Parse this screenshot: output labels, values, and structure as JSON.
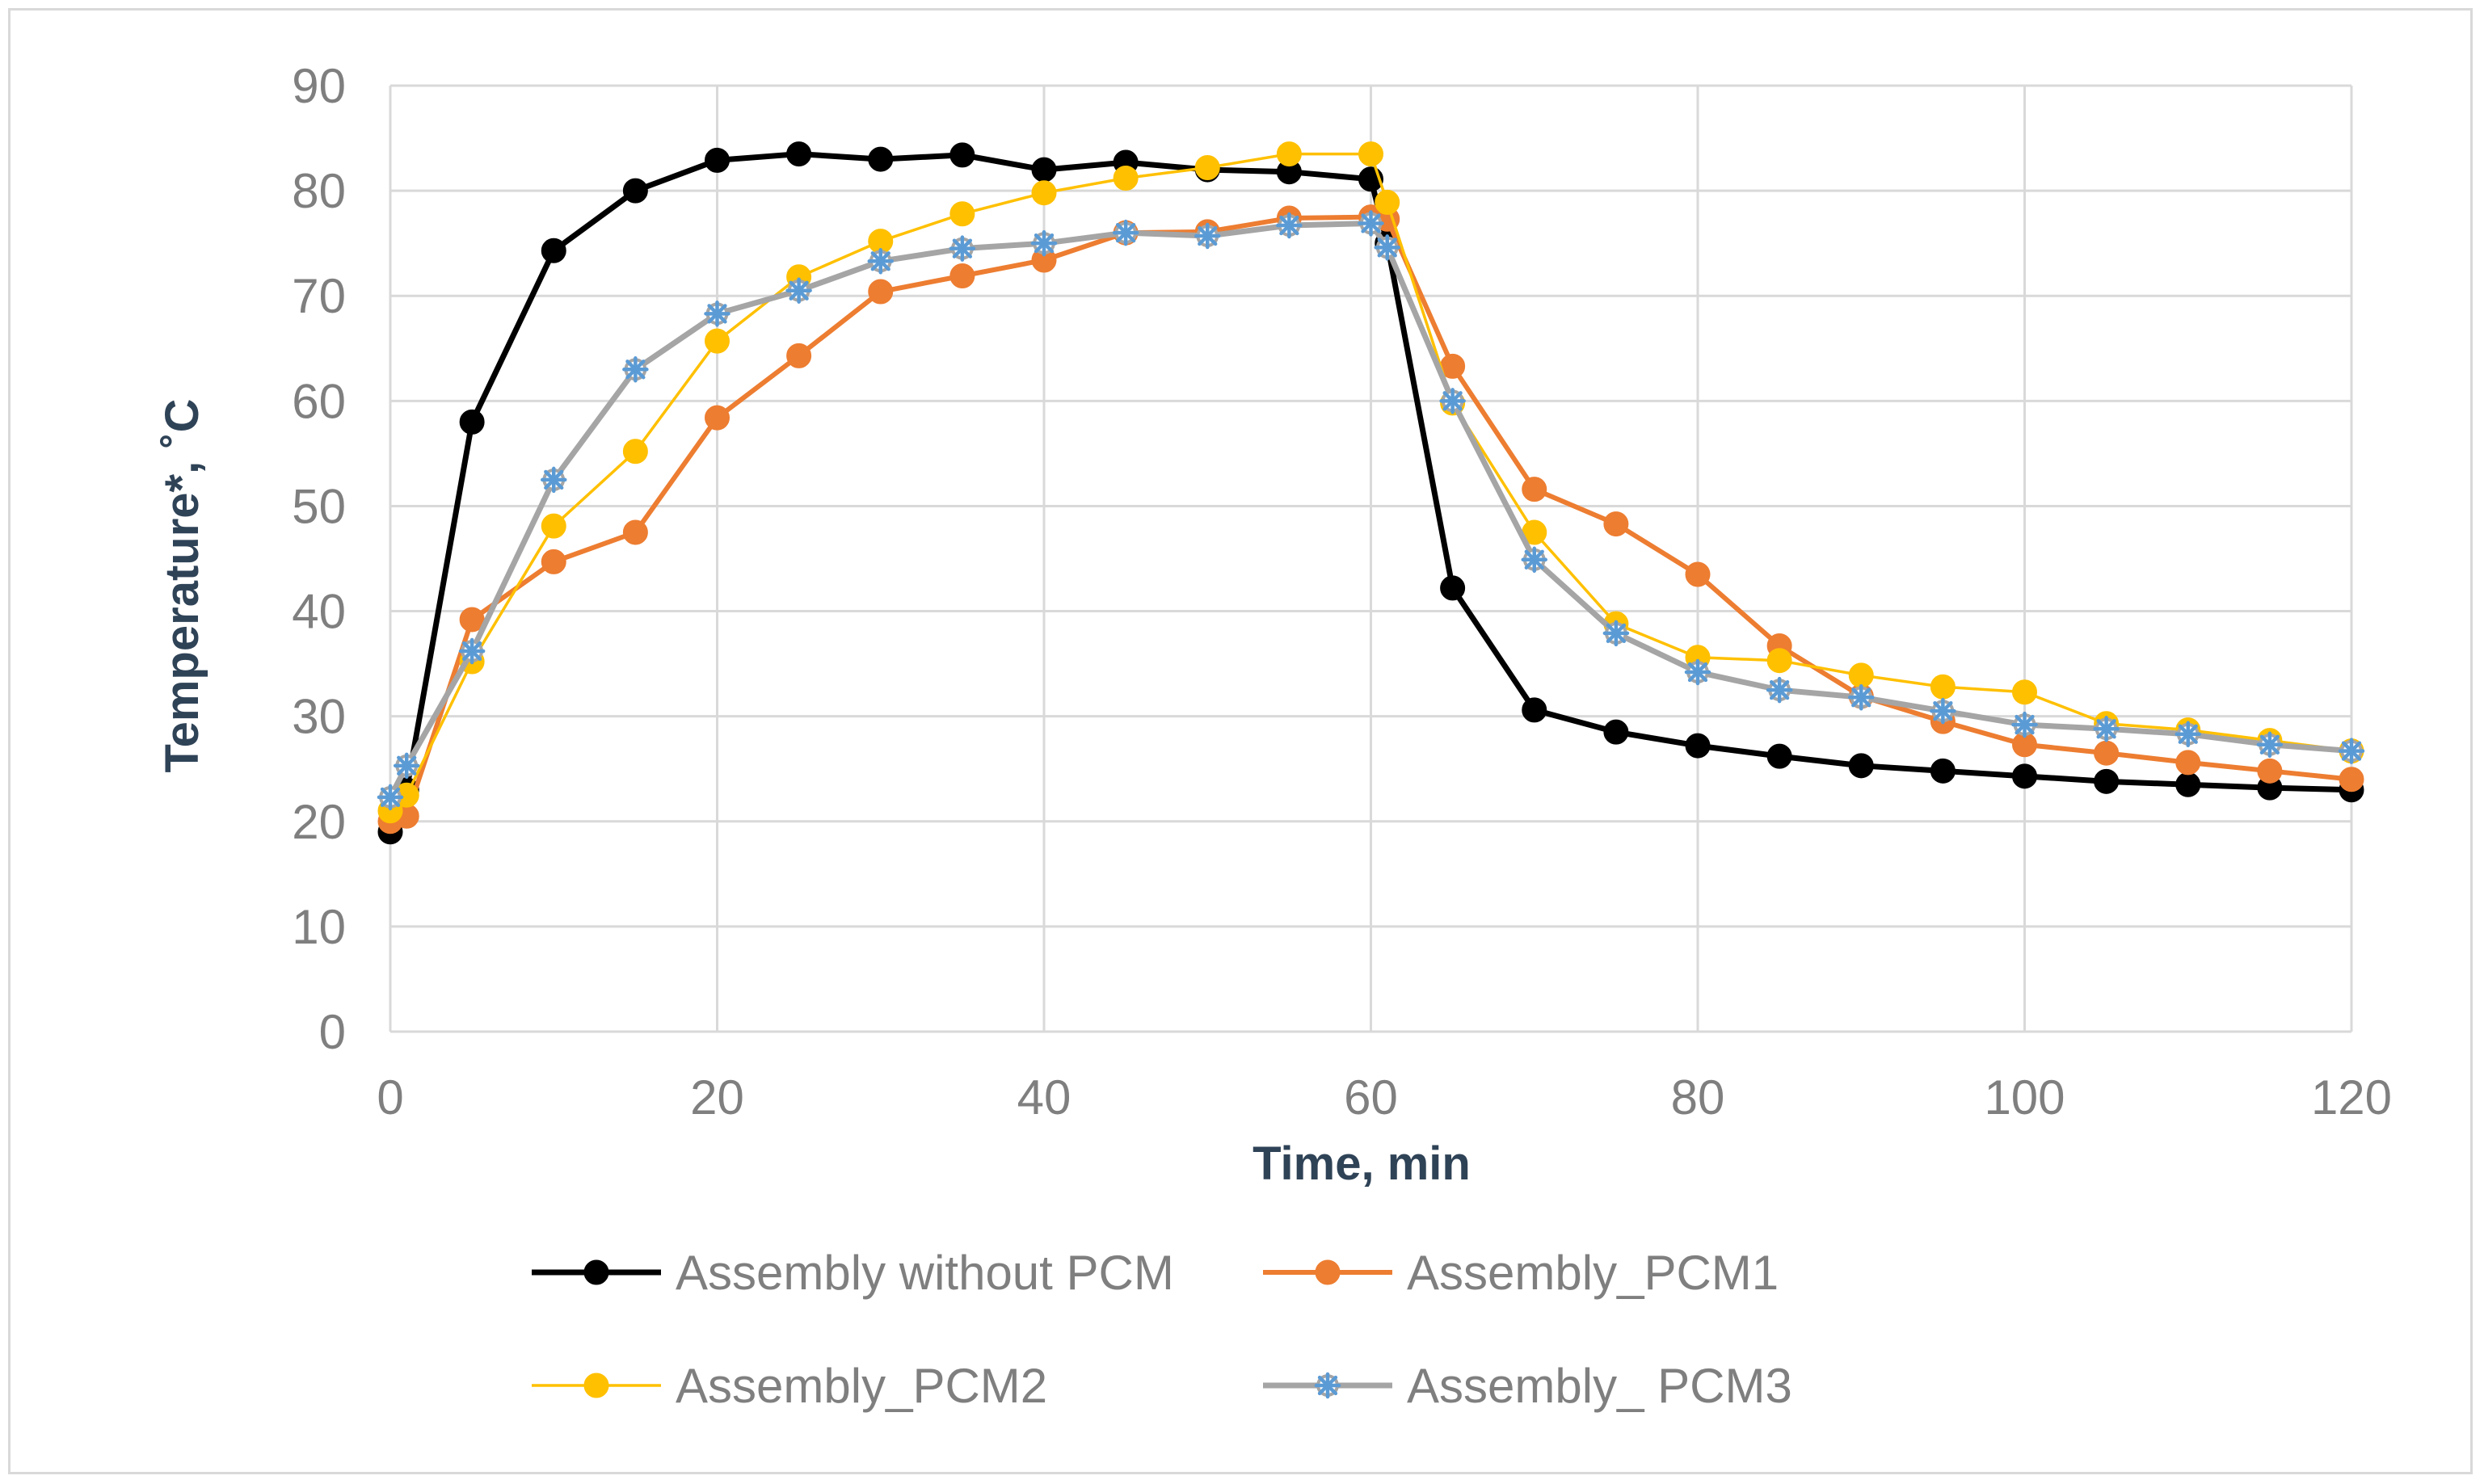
{
  "chart_data": {
    "type": "line",
    "title": "",
    "xlabel": "Time, min",
    "ylabel": "Temperature*, ˚C",
    "xlim": [
      0,
      120
    ],
    "ylim": [
      0,
      90
    ],
    "xticks": [
      "0",
      "20",
      "40",
      "60",
      "80",
      "100",
      "120"
    ],
    "yticks": [
      "0",
      "10",
      "20",
      "30",
      "40",
      "50",
      "60",
      "70",
      "80",
      "90"
    ],
    "grid": true,
    "legend_position": "bottom",
    "x": [
      0,
      1,
      5,
      10,
      15,
      20,
      25,
      30,
      35,
      40,
      45,
      50,
      55,
      60,
      61,
      65,
      70,
      75,
      80,
      85,
      90,
      95,
      100,
      105,
      110,
      115,
      120
    ],
    "series": [
      {
        "name": "Assembly without PCM",
        "color": "#000000",
        "marker": "circle",
        "values": [
          19,
          23,
          58,
          74.3,
          80,
          82.9,
          83.5,
          83,
          83.4,
          82,
          82.7,
          82,
          81.8,
          81.1,
          75,
          42.2,
          30.6,
          28.5,
          27.2,
          26.2,
          25.3,
          24.8,
          24.3,
          23.8,
          23.5,
          23.2,
          23
        ]
      },
      {
        "name": "Assembly_PCM1",
        "color": "#ed7d31",
        "marker": "circle",
        "values": [
          20,
          20.5,
          39.2,
          44.7,
          47.5,
          58.4,
          64.3,
          70.4,
          71.9,
          73.4,
          76,
          76.1,
          77.4,
          77.5,
          77.3,
          63.3,
          51.6,
          48.3,
          43.5,
          36.7,
          31.9,
          29.5,
          27.3,
          26.5,
          25.6,
          24.8,
          24
        ]
      },
      {
        "name": "Assembly_PCM2",
        "color": "#ffc000",
        "marker": "circle",
        "values": [
          21,
          22.5,
          35.2,
          48.1,
          55.2,
          65.7,
          71.8,
          75.2,
          77.8,
          79.8,
          81.2,
          82.2,
          83.5,
          83.5,
          78.9,
          59.8,
          47.5,
          38.8,
          35.6,
          35.3,
          33.9,
          32.8,
          32.3,
          29.3,
          28.7,
          27.7,
          26.7
        ]
      },
      {
        "name": "Assembly_ PCM3",
        "color": "#a5a5a5",
        "marker": "star",
        "marker_color": "#5b9bd5",
        "values": [
          22.3,
          25.3,
          36.2,
          52.5,
          63,
          68.3,
          70.5,
          73.3,
          74.5,
          75,
          76,
          75.7,
          76.7,
          76.9,
          74.6,
          60,
          44.9,
          37.9,
          34.2,
          32.5,
          31.8,
          30.5,
          29.2,
          28.8,
          28.3,
          27.3,
          26.7
        ]
      }
    ]
  }
}
